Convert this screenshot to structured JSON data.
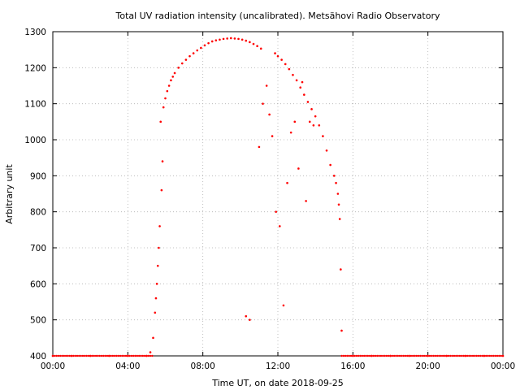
{
  "chart_data": {
    "type": "scatter",
    "title": "Total UV radiation intensity (uncalibrated). Metsähovi Radio Observatory",
    "xlabel": "Time UT, on date 2018-09-25",
    "ylabel": "Arbitrary unit",
    "xlim_hours": [
      0,
      24
    ],
    "ylim": [
      400,
      1300
    ],
    "x_ticks": [
      "00:00",
      "04:00",
      "08:00",
      "12:00",
      "16:00",
      "20:00",
      "00:00"
    ],
    "y_ticks": [
      400,
      500,
      600,
      700,
      800,
      900,
      1000,
      1100,
      1200,
      1300
    ],
    "grid": true,
    "marker_color": "#ff0000",
    "series": [
      {
        "x_hours": [
          5.75,
          5.9,
          6.0,
          6.1,
          6.2,
          6.3,
          6.4,
          6.5,
          6.7,
          6.9,
          7.1,
          7.3,
          7.5,
          7.7,
          7.9,
          8.1,
          8.3,
          8.5,
          8.7,
          8.9,
          9.1,
          9.3,
          9.5,
          9.7,
          9.9,
          10.1,
          10.3,
          10.5,
          10.7,
          10.9,
          11.1,
          11.85,
          12.0,
          12.2,
          12.4,
          12.6,
          12.8,
          13.0,
          13.2,
          13.4,
          13.6,
          13.8,
          14.0,
          14.2,
          14.4,
          14.6,
          14.8,
          15.0,
          15.1,
          15.2,
          15.25,
          15.3,
          5.2,
          5.35,
          5.45,
          5.5,
          5.55,
          5.6,
          5.65,
          5.7,
          5.8,
          5.85,
          10.3,
          10.5,
          11.0,
          11.2,
          11.4,
          11.55,
          11.7,
          11.9,
          12.1,
          12.3,
          12.5,
          12.7,
          12.9,
          13.1,
          13.3,
          13.5,
          13.7,
          13.9,
          15.35,
          15.4,
          0.0,
          1.0,
          2.0,
          3.0,
          4.0,
          5.0,
          16.0,
          17.0,
          18.0,
          19.0,
          20.0,
          21.0,
          22.0,
          23.0,
          24.0
        ],
        "values": [
          1050,
          1090,
          1115,
          1135,
          1150,
          1165,
          1175,
          1185,
          1200,
          1212,
          1222,
          1232,
          1240,
          1248,
          1255,
          1262,
          1268,
          1273,
          1276,
          1278,
          1280,
          1281,
          1282,
          1281,
          1280,
          1278,
          1275,
          1271,
          1266,
          1260,
          1253,
          1240,
          1232,
          1222,
          1210,
          1196,
          1180,
          1165,
          1145,
          1125,
          1105,
          1085,
          1065,
          1040,
          1010,
          970,
          930,
          900,
          880,
          850,
          820,
          780,
          410,
          450,
          520,
          560,
          600,
          650,
          700,
          760,
          860,
          940,
          510,
          500,
          980,
          1100,
          1150,
          1070,
          1010,
          800,
          760,
          540,
          880,
          1020,
          1050,
          920,
          1160,
          830,
          1050,
          1040,
          640,
          470,
          400,
          400,
          400,
          400,
          400,
          400,
          400,
          400,
          400,
          400,
          400,
          400,
          400,
          400,
          400
        ]
      }
    ]
  }
}
